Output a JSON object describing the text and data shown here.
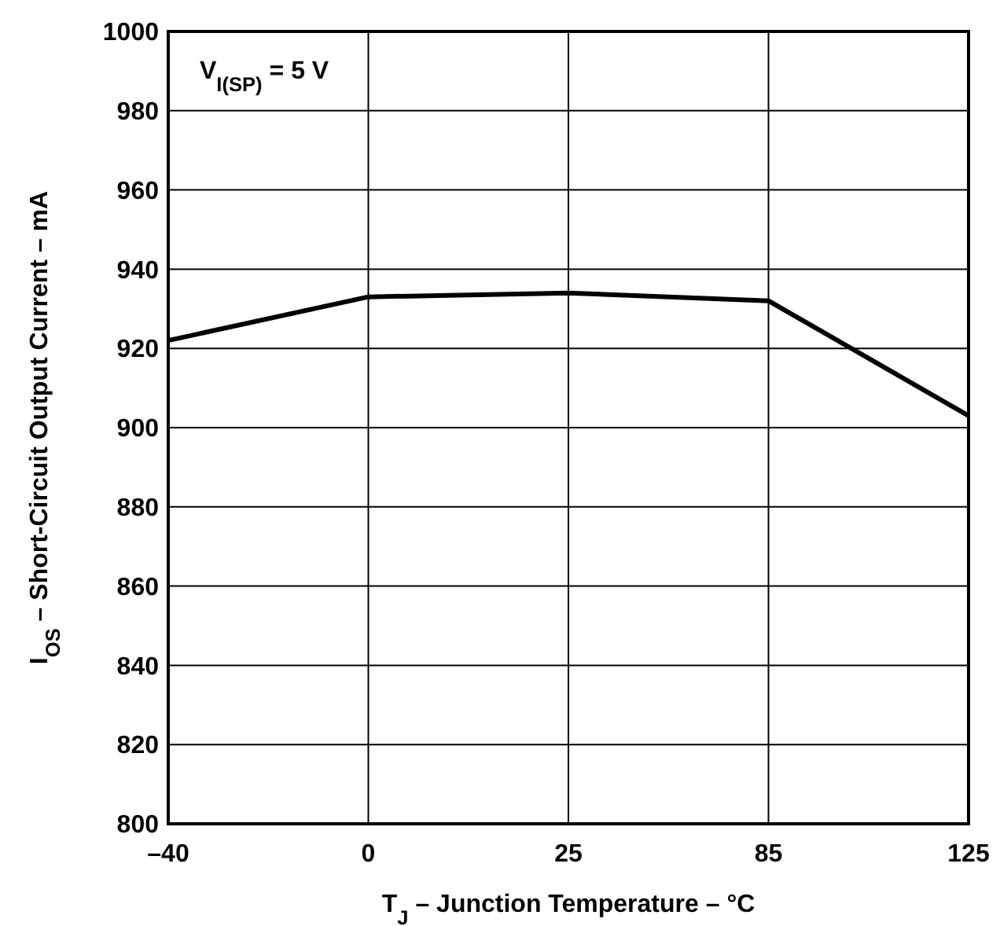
{
  "chart_data": {
    "type": "line",
    "xlabel": "T$_{J}$ – Junction Temperature – °C",
    "ylabel": "I$_{OS}$ – Short-Circuit Output Current – mA",
    "annotations": [
      "V$_{I(SP)}$ = 5 V"
    ],
    "categories": [
      "–40",
      "0",
      "25",
      "85",
      "125"
    ],
    "series": [
      {
        "color": "#000000",
        "values": [
          922,
          933,
          934,
          932,
          903
        ]
      }
    ],
    "ylim": [
      800,
      1000
    ],
    "yticks": [
      800,
      820,
      840,
      860,
      880,
      900,
      920,
      940,
      960,
      980,
      1000
    ],
    "grid": true,
    "marker": "none",
    "line_style": "solid"
  }
}
